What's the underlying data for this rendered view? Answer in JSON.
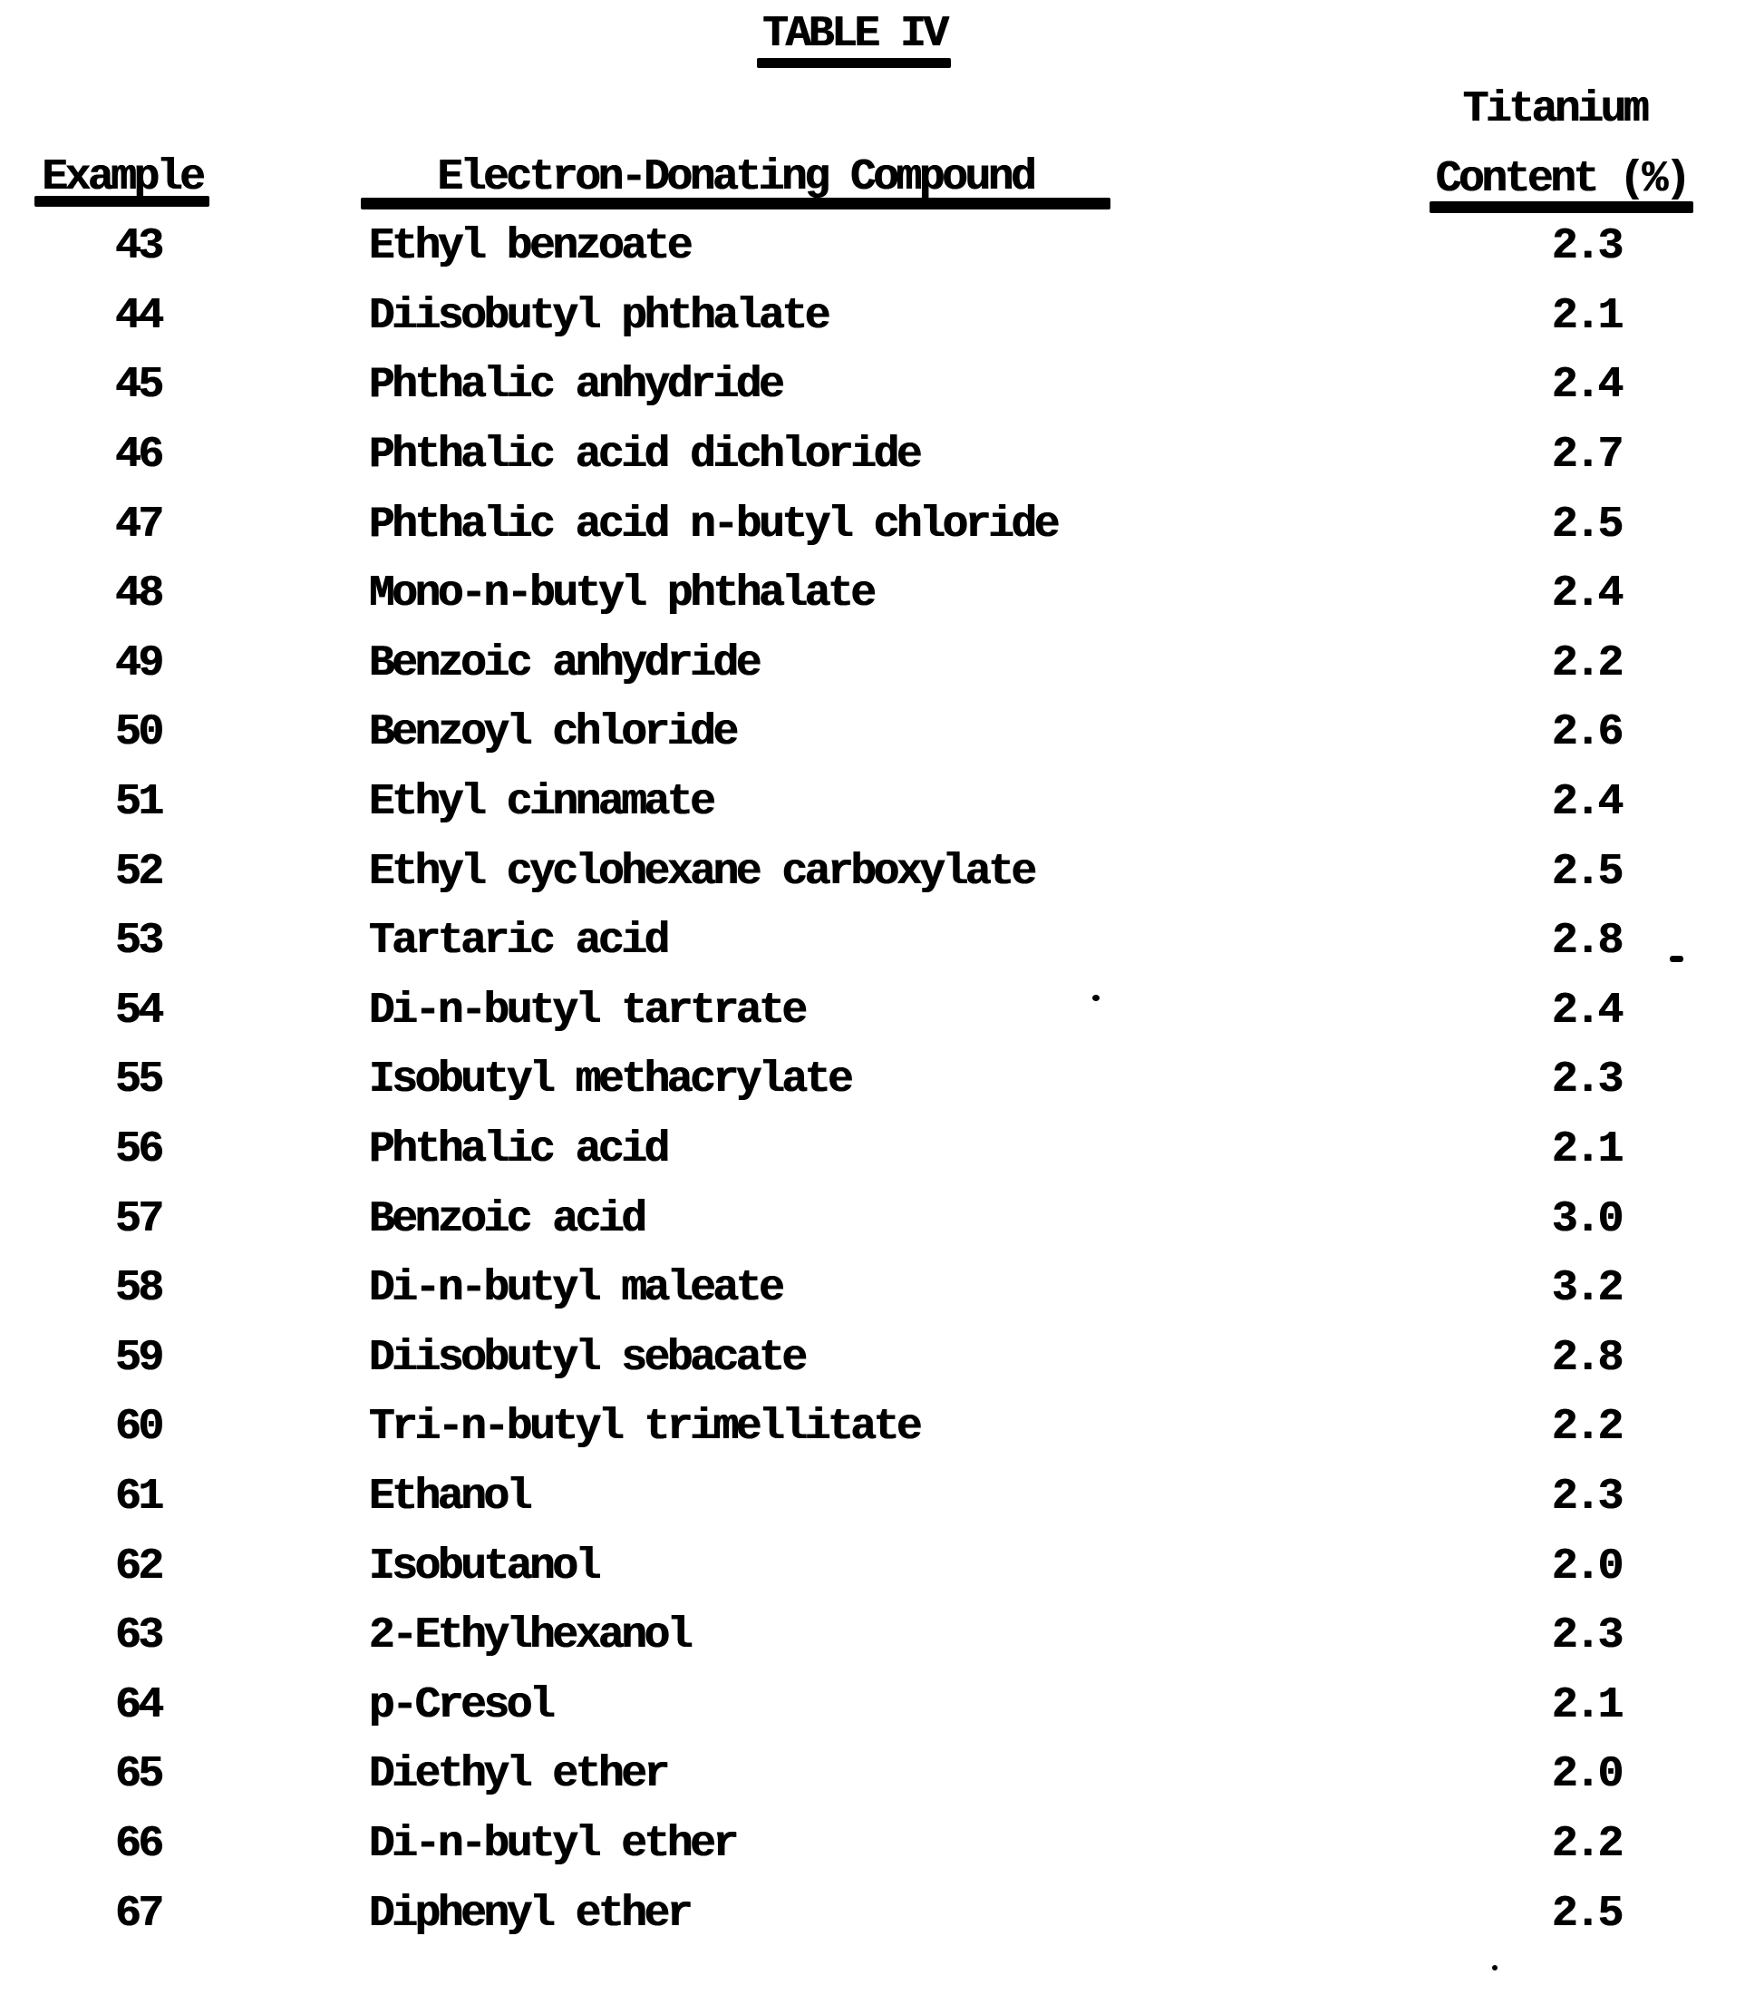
{
  "page": {
    "title": "TABLE IV",
    "header": {
      "example": "Example",
      "compound": "Electron-Donating Compound",
      "titanium_line1": "Titanium",
      "titanium_line2": "Content (%)"
    },
    "rows": [
      {
        "example": "43",
        "compound": "Ethyl benzoate",
        "titanium": "2.3"
      },
      {
        "example": "44",
        "compound": "Diisobutyl phthalate",
        "titanium": "2.1"
      },
      {
        "example": "45",
        "compound": "Phthalic anhydride",
        "titanium": "2.4"
      },
      {
        "example": "46",
        "compound": "Phthalic acid dichloride",
        "titanium": "2.7"
      },
      {
        "example": "47",
        "compound": "Phthalic acid n-butyl chloride",
        "titanium": "2.5"
      },
      {
        "example": "48",
        "compound": "Mono-n-butyl phthalate",
        "titanium": "2.4"
      },
      {
        "example": "49",
        "compound": "Benzoic anhydride",
        "titanium": "2.2"
      },
      {
        "example": "50",
        "compound": "Benzoyl chloride",
        "titanium": "2.6"
      },
      {
        "example": "51",
        "compound": "Ethyl cinnamate",
        "titanium": "2.4"
      },
      {
        "example": "52",
        "compound": "Ethyl cyclohexane carboxylate",
        "titanium": "2.5"
      },
      {
        "example": "53",
        "compound": "Tartaric acid",
        "titanium": "2.8"
      },
      {
        "example": "54",
        "compound": "Di-n-butyl tartrate",
        "titanium": "2.4"
      },
      {
        "example": "55",
        "compound": "Isobutyl methacrylate",
        "titanium": "2.3"
      },
      {
        "example": "56",
        "compound": "Phthalic acid",
        "titanium": "2.1"
      },
      {
        "example": "57",
        "compound": "Benzoic acid",
        "titanium": "3.0"
      },
      {
        "example": "58",
        "compound": "Di-n-butyl maleate",
        "titanium": "3.2"
      },
      {
        "example": "59",
        "compound": "Diisobutyl sebacate",
        "titanium": "2.8"
      },
      {
        "example": "60",
        "compound": "Tri-n-butyl trimellitate",
        "titanium": "2.2"
      },
      {
        "example": "61",
        "compound": "Ethanol",
        "titanium": "2.3"
      },
      {
        "example": "62",
        "compound": "Isobutanol",
        "titanium": "2.0"
      },
      {
        "example": "63",
        "compound": "2-Ethylhexanol",
        "titanium": "2.3"
      },
      {
        "example": "64",
        "compound": "p-Cresol",
        "titanium": "2.1"
      },
      {
        "example": "65",
        "compound": "Diethyl ether",
        "titanium": "2.0"
      },
      {
        "example": "66",
        "compound": "Di-n-butyl ether",
        "titanium": "2.2"
      },
      {
        "example": "67",
        "compound": "Diphenyl ether",
        "titanium": "2.5"
      }
    ]
  },
  "colors": {
    "ink": "#000000",
    "paper": "#ffffff"
  }
}
